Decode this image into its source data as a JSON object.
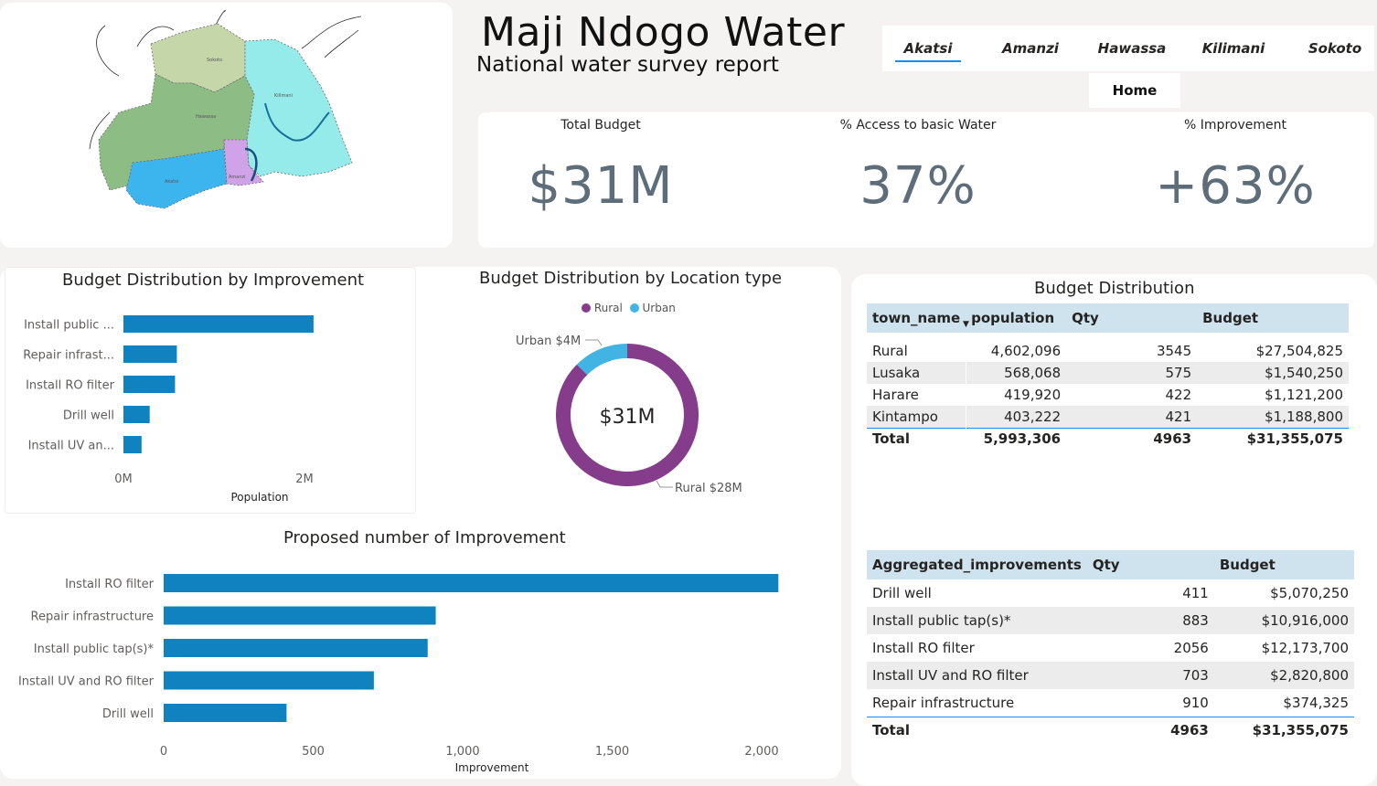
{
  "header": {
    "title": "Maji Ndogo Water",
    "subtitle": "National water survey report"
  },
  "nav": {
    "tabs": [
      {
        "label": "Akatsi",
        "active": true
      },
      {
        "label": "Amanzi",
        "active": false
      },
      {
        "label": "Hawassa",
        "active": false
      },
      {
        "label": "Kilimani",
        "active": false
      },
      {
        "label": "Sokoto",
        "active": false
      }
    ],
    "home_label": "Home"
  },
  "map": {
    "regions": [
      {
        "name": "Sokoto",
        "color": "#c5d7a8"
      },
      {
        "name": "Hawassa",
        "color": "#8dbd84"
      },
      {
        "name": "Kilimani",
        "color": "#94ebea"
      },
      {
        "name": "Akatsi",
        "color": "#3cb4ee"
      },
      {
        "name": "Amanzi",
        "color": "#d0a3e8"
      }
    ]
  },
  "kpis": [
    {
      "label": "Total Budget",
      "value": "$31M"
    },
    {
      "label": "% Access to basic Water",
      "value": "37%"
    },
    {
      "label": "% Improvement",
      "value": "+63%"
    }
  ],
  "colors": {
    "bar": "#0f82bf",
    "rural": "#853c8a",
    "urban": "#41b4e4"
  },
  "chart_data": [
    {
      "type": "bar",
      "orientation": "horizontal",
      "title": "Budget Distribution by Improvement",
      "categories": [
        "Install public ...",
        "Repair infrast...",
        "Install RO filter",
        "Drill well",
        "Install UV an..."
      ],
      "values": [
        2100000,
        590000,
        570000,
        290000,
        200000
      ],
      "xlabel": "Population",
      "xticks": [
        "0M",
        "2M"
      ],
      "xlim": [
        0,
        2000000
      ]
    },
    {
      "type": "pie",
      "donut": true,
      "title": "Budget Distribution by Location type",
      "legend": [
        "Rural",
        "Urban"
      ],
      "slices": [
        {
          "name": "Rural",
          "value": 28,
          "label": "Rural $28M"
        },
        {
          "name": "Urban",
          "value": 4,
          "label": "Urban $4M"
        }
      ],
      "center_label": "$31M"
    },
    {
      "type": "bar",
      "orientation": "horizontal",
      "title": "Proposed number of Improvement",
      "categories": [
        "Install RO filter",
        "Repair infrastructure",
        "Install public tap(s)*",
        "Install UV and RO filter",
        "Drill well"
      ],
      "values": [
        2056,
        910,
        883,
        703,
        411
      ],
      "xlabel": "Improvement",
      "xticks": [
        "0",
        "500",
        "1,000",
        "1,500",
        "2,000"
      ],
      "xlim": [
        0,
        2000
      ]
    },
    {
      "type": "table",
      "title": "Budget Distribution",
      "columns": [
        "town_name",
        "population",
        "Qty",
        "Budget"
      ],
      "rows": [
        [
          "Rural",
          "4,602,096",
          "3545",
          "$27,504,825"
        ],
        [
          "Lusaka",
          "568,068",
          "575",
          "$1,540,250"
        ],
        [
          "Harare",
          "419,920",
          "422",
          "$1,121,200"
        ],
        [
          "Kintampo",
          "403,222",
          "421",
          "$1,188,800"
        ]
      ],
      "total": [
        "Total",
        "5,993,306",
        "4963",
        "$31,355,075"
      ]
    },
    {
      "type": "table",
      "columns": [
        "Aggregated_improvements",
        "Qty",
        "Budget"
      ],
      "rows": [
        [
          "Drill well",
          "411",
          "$5,070,250"
        ],
        [
          "Install public tap(s)*",
          "883",
          "$10,916,000"
        ],
        [
          "Install RO filter",
          "2056",
          "$12,173,700"
        ],
        [
          "Install UV and RO filter",
          "703",
          "$2,820,800"
        ],
        [
          "Repair infrastructure",
          "910",
          "$374,325"
        ]
      ],
      "total": [
        "Total",
        "4963",
        "$31,355,075"
      ]
    }
  ]
}
